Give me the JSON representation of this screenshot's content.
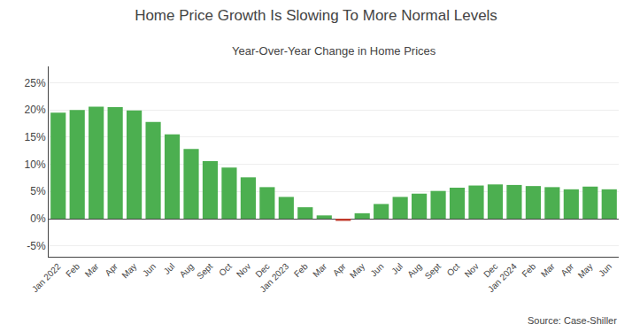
{
  "chart_data": {
    "type": "bar",
    "title": "Home Price Growth Is Slowing To More Normal Levels",
    "subtitle": "Year-Over-Year Change in Home Prices",
    "source": "Source: Case-Shiller",
    "categories": [
      "Jan 2022",
      "Feb",
      "Mar",
      "Apr",
      "May",
      "Jun",
      "Jul",
      "Aug",
      "Sept",
      "Oct",
      "Nov",
      "Dec",
      "Jan 2023",
      "Feb",
      "Mar",
      "Apr",
      "May",
      "Jun",
      "Jul",
      "Aug",
      "Sept",
      "Oct",
      "Nov",
      "Dec",
      "Jan 2024",
      "Feb",
      "Mar",
      "Apr",
      "May",
      "Jun"
    ],
    "values": [
      19.5,
      20.0,
      20.6,
      20.5,
      19.9,
      17.8,
      15.5,
      12.8,
      10.6,
      9.4,
      7.6,
      5.8,
      4.0,
      2.1,
      0.6,
      -0.4,
      1.0,
      2.7,
      4.0,
      4.6,
      5.1,
      5.7,
      6.1,
      6.3,
      6.2,
      6.0,
      5.8,
      5.4,
      5.9,
      5.4
    ],
    "colors": [
      "#4caf50",
      "#4caf50",
      "#4caf50",
      "#4caf50",
      "#4caf50",
      "#4caf50",
      "#4caf50",
      "#4caf50",
      "#4caf50",
      "#4caf50",
      "#4caf50",
      "#4caf50",
      "#4caf50",
      "#4caf50",
      "#4caf50",
      "#c0392b",
      "#4caf50",
      "#4caf50",
      "#4caf50",
      "#4caf50",
      "#4caf50",
      "#4caf50",
      "#4caf50",
      "#4caf50",
      "#4caf50",
      "#4caf50",
      "#4caf50",
      "#4caf50",
      "#4caf50",
      "#4caf50"
    ],
    "ylim": [
      -7,
      28
    ],
    "yticks": [
      {
        "value": -5,
        "label": "-5%"
      },
      {
        "value": 0,
        "label": "0%"
      },
      {
        "value": 5,
        "label": "5%"
      },
      {
        "value": 10,
        "label": "10%"
      },
      {
        "value": 15,
        "label": "15%"
      },
      {
        "value": 20,
        "label": "20%"
      },
      {
        "value": 25,
        "label": "25%"
      }
    ],
    "grid": true
  }
}
